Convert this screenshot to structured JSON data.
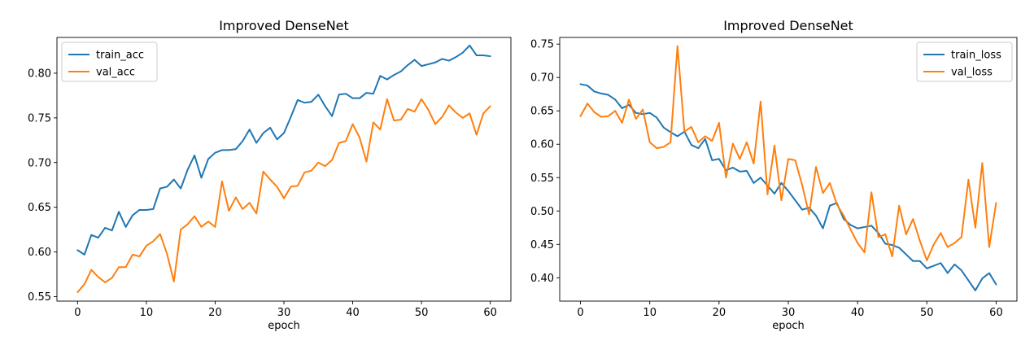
{
  "chart_data": [
    {
      "type": "line",
      "title": "Improved DenseNet",
      "xlabel": "epoch",
      "ylabel": "",
      "xlim": [
        -3,
        63
      ],
      "ylim": [
        0.545,
        0.84
      ],
      "xticks": [
        0,
        10,
        20,
        30,
        40,
        50,
        60
      ],
      "yticks": [
        0.55,
        0.6,
        0.65,
        0.7,
        0.75,
        0.8
      ],
      "ytick_labels": [
        "0.55",
        "0.60",
        "0.65",
        "0.70",
        "0.75",
        "0.80"
      ],
      "legend_position": "top-left",
      "series": [
        {
          "name": "train_acc",
          "color": "#1f77b4",
          "values": [
            0.602,
            0.597,
            0.619,
            0.616,
            0.627,
            0.624,
            0.645,
            0.628,
            0.641,
            0.647,
            0.647,
            0.648,
            0.671,
            0.673,
            0.681,
            0.671,
            0.692,
            0.708,
            0.683,
            0.704,
            0.711,
            0.714,
            0.714,
            0.715,
            0.724,
            0.737,
            0.722,
            0.733,
            0.739,
            0.726,
            0.733,
            0.751,
            0.77,
            0.767,
            0.768,
            0.776,
            0.763,
            0.752,
            0.776,
            0.777,
            0.772,
            0.772,
            0.778,
            0.777,
            0.797,
            0.793,
            0.798,
            0.802,
            0.809,
            0.815,
            0.808,
            0.81,
            0.812,
            0.816,
            0.814,
            0.818,
            0.823,
            0.831,
            0.82,
            0.82,
            0.819
          ]
        },
        {
          "name": "val_acc",
          "color": "#ff7f0e",
          "values": [
            0.555,
            0.564,
            0.58,
            0.572,
            0.566,
            0.571,
            0.583,
            0.583,
            0.597,
            0.595,
            0.607,
            0.612,
            0.62,
            0.598,
            0.567,
            0.625,
            0.631,
            0.64,
            0.628,
            0.634,
            0.628,
            0.679,
            0.646,
            0.661,
            0.648,
            0.655,
            0.643,
            0.69,
            0.681,
            0.673,
            0.66,
            0.673,
            0.674,
            0.689,
            0.691,
            0.7,
            0.696,
            0.703,
            0.722,
            0.724,
            0.743,
            0.728,
            0.701,
            0.745,
            0.737,
            0.771,
            0.747,
            0.748,
            0.76,
            0.757,
            0.771,
            0.759,
            0.743,
            0.751,
            0.764,
            0.756,
            0.75,
            0.755,
            0.731,
            0.755,
            0.763
          ]
        }
      ]
    },
    {
      "type": "line",
      "title": "Improved DenseNet",
      "xlabel": "epoch",
      "ylabel": "",
      "xlim": [
        -3,
        63
      ],
      "ylim": [
        0.365,
        0.76
      ],
      "xticks": [
        0,
        10,
        20,
        30,
        40,
        50,
        60
      ],
      "yticks": [
        0.4,
        0.45,
        0.5,
        0.55,
        0.6,
        0.65,
        0.7,
        0.75
      ],
      "ytick_labels": [
        "0.40",
        "0.45",
        "0.50",
        "0.55",
        "0.60",
        "0.65",
        "0.70",
        "0.75"
      ],
      "legend_position": "top-right",
      "series": [
        {
          "name": "train_loss",
          "color": "#1f77b4",
          "values": [
            0.69,
            0.688,
            0.679,
            0.676,
            0.674,
            0.667,
            0.654,
            0.659,
            0.647,
            0.645,
            0.647,
            0.64,
            0.625,
            0.618,
            0.612,
            0.619,
            0.599,
            0.594,
            0.608,
            0.576,
            0.578,
            0.561,
            0.565,
            0.559,
            0.56,
            0.542,
            0.55,
            0.538,
            0.526,
            0.542,
            0.53,
            0.516,
            0.502,
            0.505,
            0.493,
            0.474,
            0.508,
            0.512,
            0.488,
            0.479,
            0.474,
            0.476,
            0.478,
            0.467,
            0.451,
            0.449,
            0.445,
            0.435,
            0.425,
            0.425,
            0.414,
            0.418,
            0.422,
            0.407,
            0.42,
            0.411,
            0.396,
            0.381,
            0.399,
            0.407,
            0.39
          ]
        },
        {
          "name": "val_loss",
          "color": "#ff7f0e",
          "values": [
            0.642,
            0.661,
            0.648,
            0.641,
            0.642,
            0.65,
            0.632,
            0.667,
            0.638,
            0.652,
            0.603,
            0.594,
            0.596,
            0.603,
            0.747,
            0.619,
            0.626,
            0.603,
            0.612,
            0.605,
            0.632,
            0.55,
            0.601,
            0.578,
            0.603,
            0.571,
            0.664,
            0.525,
            0.598,
            0.516,
            0.578,
            0.576,
            0.539,
            0.495,
            0.566,
            0.527,
            0.542,
            0.51,
            0.493,
            0.472,
            0.452,
            0.438,
            0.528,
            0.461,
            0.465,
            0.432,
            0.508,
            0.465,
            0.488,
            0.455,
            0.426,
            0.45,
            0.467,
            0.446,
            0.452,
            0.461,
            0.547,
            0.475,
            0.572,
            0.446,
            0.512
          ]
        }
      ]
    }
  ]
}
